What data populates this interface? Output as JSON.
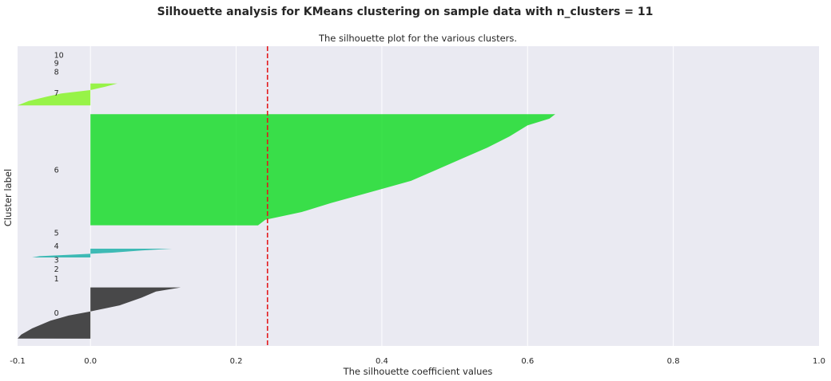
{
  "chart_data": {
    "type": "area",
    "suptitle": "Silhouette analysis for KMeans clustering on sample data with n_clusters = 11",
    "title": "The silhouette plot for the various clusters.",
    "xlabel": "The silhouette coefficient values",
    "ylabel": "Cluster label",
    "xlim": [
      -0.1,
      1.0
    ],
    "ylim": [
      0,
      410
    ],
    "xticks": [
      -0.1,
      0.0,
      0.2,
      0.4,
      0.6,
      0.8,
      1.0
    ],
    "xtick_labels": [
      "-0.1",
      "0.0",
      "0.2",
      "0.4",
      "0.6",
      "0.8",
      "1.0"
    ],
    "grid": true,
    "average_silhouette": 0.243,
    "average_line_color": "#e31a1c",
    "background_color": "#eaeaf2",
    "clusters": [
      {
        "label": "0",
        "color": "#2b2b2b",
        "y_lower": 10,
        "y_upper": 80,
        "label_y": 45,
        "profile": [
          [
            0,
            0.124
          ],
          [
            0.08,
            0.09
          ],
          [
            0.2,
            0.07
          ],
          [
            0.35,
            0.04
          ],
          [
            0.47,
            0.0
          ],
          [
            0.55,
            -0.03
          ],
          [
            0.65,
            -0.055
          ],
          [
            0.8,
            -0.08
          ],
          [
            0.92,
            -0.095
          ],
          [
            1,
            -0.1
          ]
        ]
      },
      {
        "label": "1",
        "color": "#555555",
        "y_lower": 90,
        "y_upper": 90,
        "label_y": 92,
        "profile": []
      },
      {
        "label": "2",
        "color": "#666666",
        "y_lower": 103,
        "y_upper": 103,
        "label_y": 105,
        "profile": []
      },
      {
        "label": "3",
        "color": "#777777",
        "y_lower": 116,
        "y_upper": 116,
        "label_y": 118,
        "profile": []
      },
      {
        "label": "4",
        "color": "#20b2aa",
        "y_lower": 121,
        "y_upper": 133,
        "label_y": 137,
        "profile": [
          [
            0,
            0.112
          ],
          [
            0.2,
            0.07
          ],
          [
            0.45,
            0.03
          ],
          [
            0.65,
            -0.02
          ],
          [
            0.85,
            -0.07
          ],
          [
            1,
            -0.08
          ]
        ]
      },
      {
        "label": "5",
        "color": "#33aa66",
        "y_lower": 155,
        "y_upper": 155,
        "label_y": 155,
        "profile": []
      },
      {
        "label": "6",
        "color": "#1adc2c",
        "y_lower": 165,
        "y_upper": 317,
        "label_y": 241,
        "profile": [
          [
            0,
            0.638
          ],
          [
            0.04,
            0.63
          ],
          [
            0.1,
            0.6
          ],
          [
            0.2,
            0.575
          ],
          [
            0.3,
            0.545
          ],
          [
            0.4,
            0.51
          ],
          [
            0.5,
            0.475
          ],
          [
            0.6,
            0.44
          ],
          [
            0.7,
            0.385
          ],
          [
            0.8,
            0.33
          ],
          [
            0.88,
            0.29
          ],
          [
            0.95,
            0.24
          ],
          [
            1,
            0.23
          ]
        ]
      },
      {
        "label": "7",
        "color": "#88f52a",
        "y_lower": 329,
        "y_upper": 359,
        "label_y": 346,
        "profile": [
          [
            0,
            0.037
          ],
          [
            0.15,
            0.02
          ],
          [
            0.3,
            0.0
          ],
          [
            0.45,
            -0.04
          ],
          [
            0.6,
            -0.06
          ],
          [
            0.8,
            -0.085
          ],
          [
            1,
            -0.1
          ]
        ]
      },
      {
        "label": "8",
        "color": "#99ee55",
        "y_lower": 374,
        "y_upper": 374,
        "label_y": 375,
        "profile": []
      },
      {
        "label": "9",
        "color": "#aaee66",
        "y_lower": 387,
        "y_upper": 387,
        "label_y": 387,
        "profile": []
      },
      {
        "label": "10",
        "color": "#bbee77",
        "y_lower": 398,
        "y_upper": 398,
        "label_y": 398,
        "profile": []
      }
    ]
  }
}
